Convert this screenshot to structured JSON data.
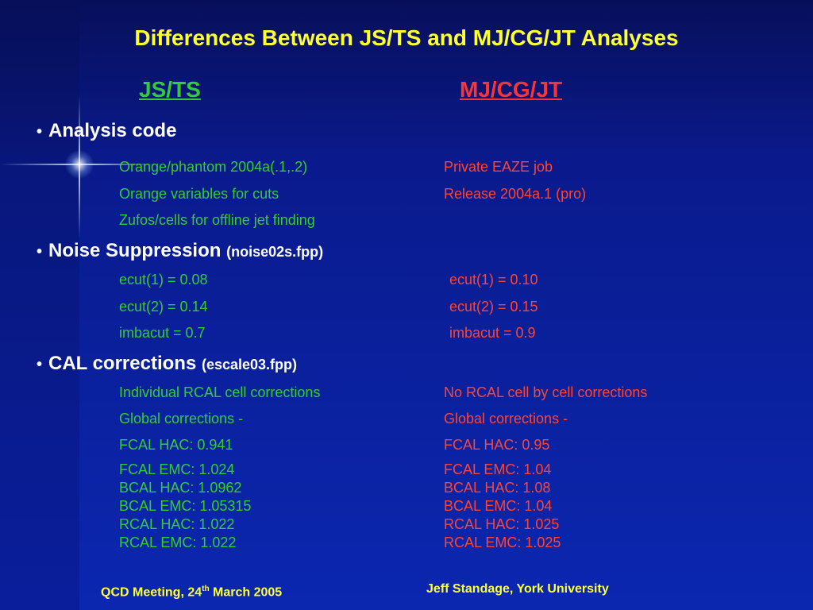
{
  "title": "Differences Between JS/TS and MJ/CG/JT Analyses",
  "columns": {
    "left": "JS/TS",
    "right": "MJ/CG/JT"
  },
  "sections": {
    "analysis": {
      "heading": "Analysis code",
      "left": [
        "Orange/phantom 2004a(.1,.2)",
        "Orange variables for cuts",
        "Zufos/cells for offline jet finding"
      ],
      "right": [
        "Private EAZE job",
        "Release 2004a.1 (pro)"
      ]
    },
    "noise": {
      "heading": "Noise Suppression",
      "sub": "(noise02s.fpp)",
      "left": [
        "ecut(1) = 0.08",
        "ecut(2) = 0.14",
        "imbacut = 0.7"
      ],
      "right": [
        "ecut(1) = 0.10",
        "ecut(2) = 0.15",
        "imbacut = 0.9"
      ]
    },
    "cal": {
      "heading": "CAL corrections",
      "sub": "(escale03.fpp)",
      "left": [
        "Individual RCAL cell corrections",
        "Global corrections -",
        "FCAL  HAC:  0.941"
      ],
      "right": [
        "No RCAL cell by cell corrections",
        "Global corrections -",
        "FCAL HAC: 0.95"
      ],
      "left_block": [
        "FCAL EMC:  1.024",
        "BCAL  HAC:  1.0962",
        "BCAL EMC:    1.05315",
        "RCAL  HAC:  1.022",
        "RCAL EMC:    1.022"
      ],
      "right_block": [
        "FCAL EMC:  1.04",
        "BCAL HAC: 1.08",
        "BCAL EMC:  1.04",
        "RCAL HAC:  1.025",
        "RCAL EMC:  1.025"
      ]
    }
  },
  "footer": {
    "left_pre": "QCD Meeting, 24",
    "left_sup": "th",
    "left_post": " March 2005",
    "right": "Jeff Standage, York University"
  },
  "colors": {
    "title": "#ffff33",
    "js_ts": "#33cc33",
    "mj_cg_jt": "#ff3333",
    "background": "#0a1a8c"
  }
}
